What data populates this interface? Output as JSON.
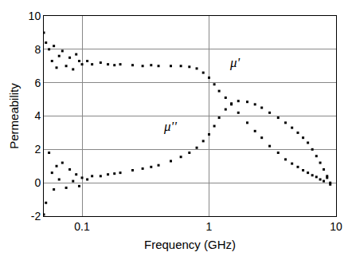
{
  "chart_data": {
    "type": "scatter",
    "x_label": "Frequency (GHz)",
    "y_label": "Permeability",
    "log": "x",
    "grid": true,
    "marker": "square",
    "color": "#000000",
    "xlim": [
      0.05,
      10
    ],
    "xticks": [
      0.1,
      1,
      10
    ],
    "ylim": [
      -2,
      10
    ],
    "yticks": [
      -2,
      0,
      2,
      4,
      6,
      8,
      10
    ],
    "x": [
      0.05,
      0.052,
      0.055,
      0.058,
      0.06,
      0.063,
      0.066,
      0.07,
      0.075,
      0.08,
      0.085,
      0.09,
      0.095,
      0.1,
      0.11,
      0.12,
      0.14,
      0.16,
      0.18,
      0.2,
      0.25,
      0.3,
      0.35,
      0.4,
      0.5,
      0.6,
      0.7,
      0.8,
      0.9,
      1.0,
      1.1,
      1.2,
      1.35,
      1.5,
      1.7,
      2.0,
      2.3,
      2.6,
      3.0,
      3.5,
      4.0,
      4.5,
      5.0,
      5.5,
      6.0,
      6.5,
      7.0,
      7.5,
      8.0,
      8.5,
      9.0
    ],
    "series": [
      {
        "values": [
          9.0,
          8.4,
          8.0,
          7.3,
          8.2,
          6.9,
          7.6,
          7.9,
          7.0,
          7.5,
          6.8,
          7.7,
          7.3,
          7.1,
          7.3,
          7.1,
          7.2,
          7.1,
          7.05,
          7.1,
          7.05,
          7.0,
          7.05,
          7.0,
          7.0,
          7.0,
          6.95,
          6.85,
          6.6,
          6.3,
          5.9,
          5.5,
          5.1,
          4.7,
          4.2,
          3.6,
          3.1,
          2.7,
          2.2,
          1.8,
          1.4,
          1.15,
          0.95,
          0.75,
          0.6,
          0.45,
          0.35,
          0.2,
          0.1,
          0.3,
          -0.1
        ]
      },
      {
        "values": [
          -1.9,
          -1.2,
          1.8,
          0.6,
          -0.4,
          1.0,
          0.2,
          1.2,
          -0.3,
          0.8,
          0.1,
          0.5,
          -0.2,
          0.3,
          0.2,
          0.4,
          0.4,
          0.5,
          0.55,
          0.6,
          0.75,
          0.85,
          0.95,
          1.05,
          1.3,
          1.55,
          1.8,
          2.1,
          2.5,
          2.9,
          3.4,
          3.9,
          4.4,
          4.75,
          4.9,
          4.85,
          4.7,
          4.5,
          4.2,
          3.9,
          3.6,
          3.3,
          3.0,
          2.7,
          2.4,
          2.0,
          1.6,
          1.2,
          0.8,
          0.4,
          0.0
        ]
      }
    ],
    "annotations": [
      {
        "text": "μ'",
        "x": 1.6,
        "y": 7.2
      },
      {
        "text": "μ''",
        "x": 0.49,
        "y": 3.4
      }
    ]
  }
}
